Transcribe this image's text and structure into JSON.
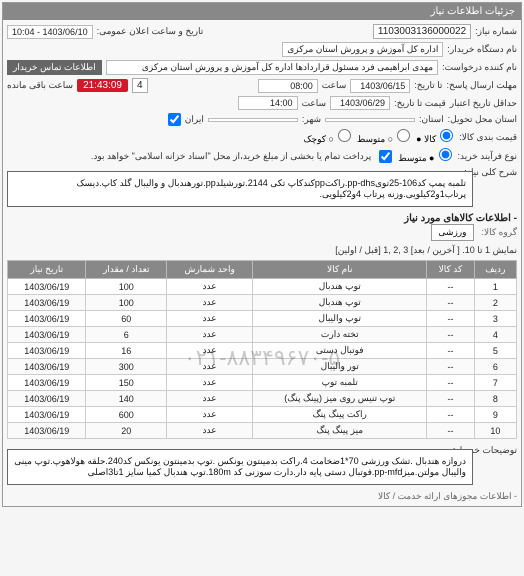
{
  "panel_header": "جزئیات اطلاعات نیاز",
  "top": {
    "number_label": "شماره نیاز:",
    "number_value": "1103003136000022",
    "datetime_label": "تاریخ و ساعت اعلان عمومی:",
    "datetime_value": "1403/06/10 - 10:04",
    "buyer_label": "نام دستگاه خریدار:",
    "buyer_value": "اداره کل آموزش و پرورش استان مرکزی",
    "requester_label": "نام کننده درخواست:",
    "requester_value": "مهدی ابراهیمی فرد مسئول قراردادها اداره کل آموزش و پرورش استان مرکزی",
    "contact_btn": "اطلاعات تماس خریدار",
    "deadline_label": "مهلت ارسال پاسخ:",
    "deadline_till": "تا تاریخ:",
    "deadline_date": "1403/06/15",
    "deadline_time_label": "ساعت",
    "deadline_time": "08:00",
    "remaining_count": "4",
    "remaining_timer": "21:43:09",
    "remaining_text": "ساعت باقی مانده",
    "validity_label": "حداقل تاریخ اعتبار",
    "validity_till": "قیمت تا تاریخ:",
    "validity_date": "1403/06/29",
    "validity_time_label": "ساعت",
    "validity_time": "14:00",
    "location_label": "استان محل تحویل:",
    "province_label": "استان:",
    "city_label": "شهر:",
    "iran_label": "ایران"
  },
  "bundle": {
    "label": "قیمت بندی کالا:",
    "item": "کالا ●",
    "medium": "○ متوسط",
    "low": "○ کوچک"
  },
  "purchase": {
    "label": "نوع فرآیند خرید:",
    "medium": "● متوسط",
    "note": "پرداخت تمام یا بخشی از مبلغ خرید،از محل \"اسناد خزانه اسلامی\" خواهد بود."
  },
  "general_desc": {
    "label": "شرح کلی نیاز:",
    "text": "تلمبه پمپ کد106-25تویpp-dhs.راکتppکندکاپ تکی 2144.تورشیلدpp.تورهندبال و والیبال گلد کاپ.دیسک پرتاب1و2کیلویی.وزنه پرتاب 4و2کیلویی."
  },
  "goods_header": "- اطلاعات کالاهای مورد نیاز",
  "category": {
    "label": "گروه کالا:",
    "value": "ورزشی"
  },
  "pager": {
    "text_prefix": "نمایش 1 تا 10.",
    "links": "[ آخرین / بعد] 3 ,2 ,1 [قبل / اولین]"
  },
  "table": {
    "headers": [
      "ردیف",
      "کد کالا",
      "نام کالا",
      "واحد شمارش",
      "تعداد / مقدار",
      "تاریخ نیاز"
    ],
    "rows": [
      [
        "1",
        "--",
        "توپ هندبال",
        "عدد",
        "100",
        "1403/06/19"
      ],
      [
        "2",
        "--",
        "توپ هندبال",
        "عدد",
        "100",
        "1403/06/19"
      ],
      [
        "3",
        "--",
        "توپ والیبال",
        "عدد",
        "60",
        "1403/06/19"
      ],
      [
        "4",
        "--",
        "تخته دارت",
        "عدد",
        "6",
        "1403/06/19"
      ],
      [
        "5",
        "--",
        "فوتبال دستی",
        "عدد",
        "16",
        "1403/06/19"
      ],
      [
        "6",
        "--",
        "تور والیبال",
        "عدد",
        "300",
        "1403/06/19"
      ],
      [
        "7",
        "--",
        "تلمبه توپ",
        "عدد",
        "150",
        "1403/06/19"
      ],
      [
        "8",
        "--",
        "توپ تنیس روی میز (پینگ پنگ)",
        "عدد",
        "140",
        "1403/06/19"
      ],
      [
        "9",
        "--",
        "راکت پینگ پنگ",
        "عدد",
        "600",
        "1403/06/19"
      ],
      [
        "10",
        "--",
        "میز پینگ پنگ",
        "عدد",
        "20",
        "1403/06/19"
      ]
    ]
  },
  "remarks": {
    "label": "توضیحات خریدار:",
    "text": "دروازه هندبال .تشک ورزشی 70*1ضخامت 4.راکت بدمینتون یونکس .توپ بدمینتون یونکس کد240.حلقه هولاهوپ.توپ مینی والیبال مولتن.میزpp-mfd.فوتبال دستی پایه دار.دارت سوزنی کد 180m.توپ هندبال کمیا سایز 1تا3اصلی"
  },
  "footer_note": "- اطلاعات مجوزهای ارائه خدمت / کالا",
  "watermark": "۰۲۱-۸۸۳۴۹۶۷۰-۵"
}
